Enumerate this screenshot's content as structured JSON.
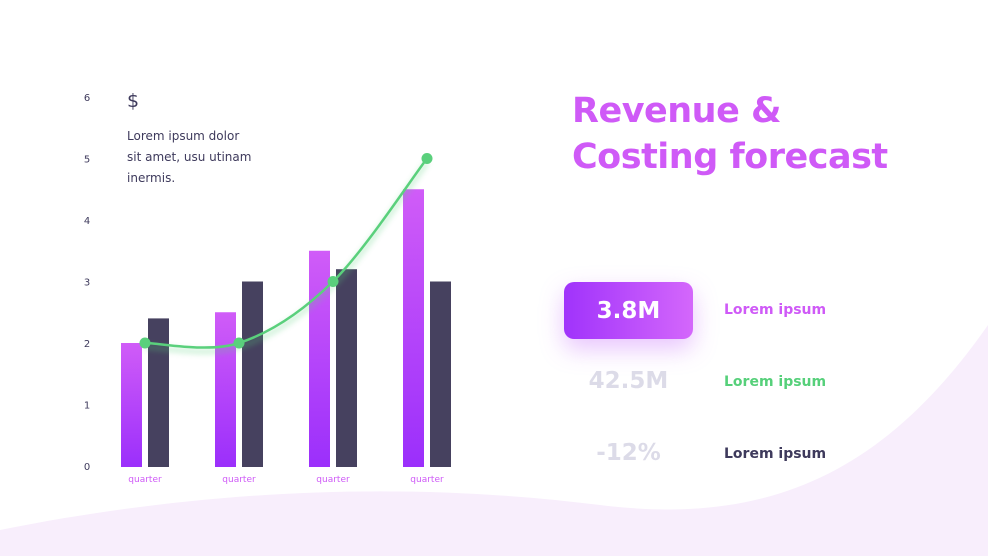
{
  "title_line1": "Revenue &",
  "title_line2": "Costing forecast",
  "currency_symbol": "$",
  "description": "Lorem ipsum dolor sit amet, usu utinam inermis.",
  "kpis": [
    {
      "value": "3.8M",
      "label": "Lorem ipsum",
      "label_color": "#cf5af7",
      "highlighted": true
    },
    {
      "value": "42.5M",
      "label": "Lorem ipsum",
      "label_color": "#56d07a",
      "highlighted": false
    },
    {
      "value": "-12%",
      "label": "Lorem ipsum",
      "label_color": "#3e3a5c",
      "highlighted": false
    }
  ],
  "colors": {
    "accent": "#cf5af7",
    "bar_purple_top": "#d05cf8",
    "bar_purple_bottom": "#9b2ffb",
    "bar_dark": "#46415f",
    "line": "#5ad07c",
    "background_wave": "#f8eefc"
  },
  "chart_data": {
    "type": "bar",
    "categories": [
      "quarter",
      "quarter",
      "quarter",
      "quarter"
    ],
    "series": [
      {
        "type": "bar",
        "values": [
          2,
          2.5,
          3.5,
          4.5
        ],
        "color": "purple-gradient"
      },
      {
        "type": "bar",
        "values": [
          2.4,
          3,
          3.2,
          3
        ],
        "color": "#46415f"
      },
      {
        "type": "line",
        "values": [
          2,
          2,
          3,
          5
        ],
        "color": "#5ad07c",
        "smooth": true
      }
    ],
    "yticks": [
      0,
      1,
      2,
      3,
      4,
      5,
      6
    ],
    "ylim": [
      0,
      6
    ],
    "grid": false,
    "title": "",
    "xlabel": "",
    "ylabel": ""
  }
}
